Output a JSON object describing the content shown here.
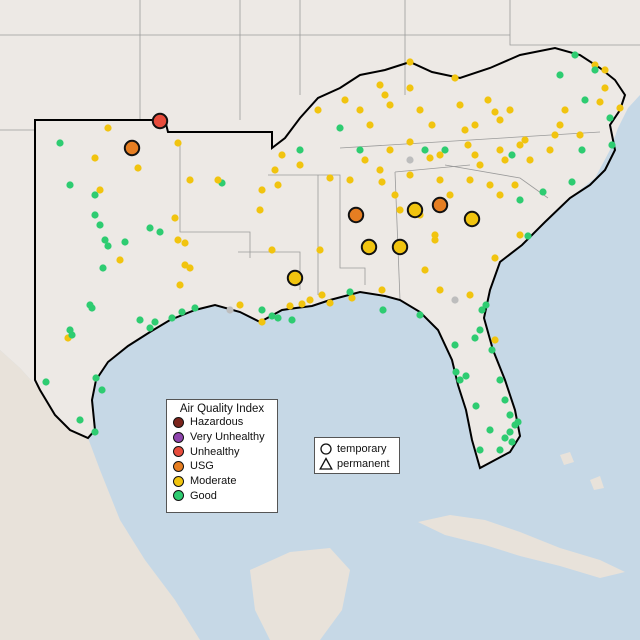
{
  "legend": {
    "title": "Air Quality Index",
    "categories": [
      {
        "label": "Hazardous",
        "color": "#7b241c"
      },
      {
        "label": "Very Unhealthy",
        "color": "#8e44ad"
      },
      {
        "label": "Unhealthy",
        "color": "#e74c3c"
      },
      {
        "label": "USG",
        "color": "#e67e22"
      },
      {
        "label": "Moderate",
        "color": "#f1c40f"
      },
      {
        "label": "Good",
        "color": "#2ecc71"
      }
    ]
  },
  "shape_legend": {
    "temporary_label": "temporary",
    "permanent_label": "permanent"
  },
  "colors": {
    "water": "#c6d8e6",
    "land": "#ede9e5",
    "border": "#000000",
    "state_lines": "#9a9a9a",
    "no_data": "#bdbdbd"
  }
}
